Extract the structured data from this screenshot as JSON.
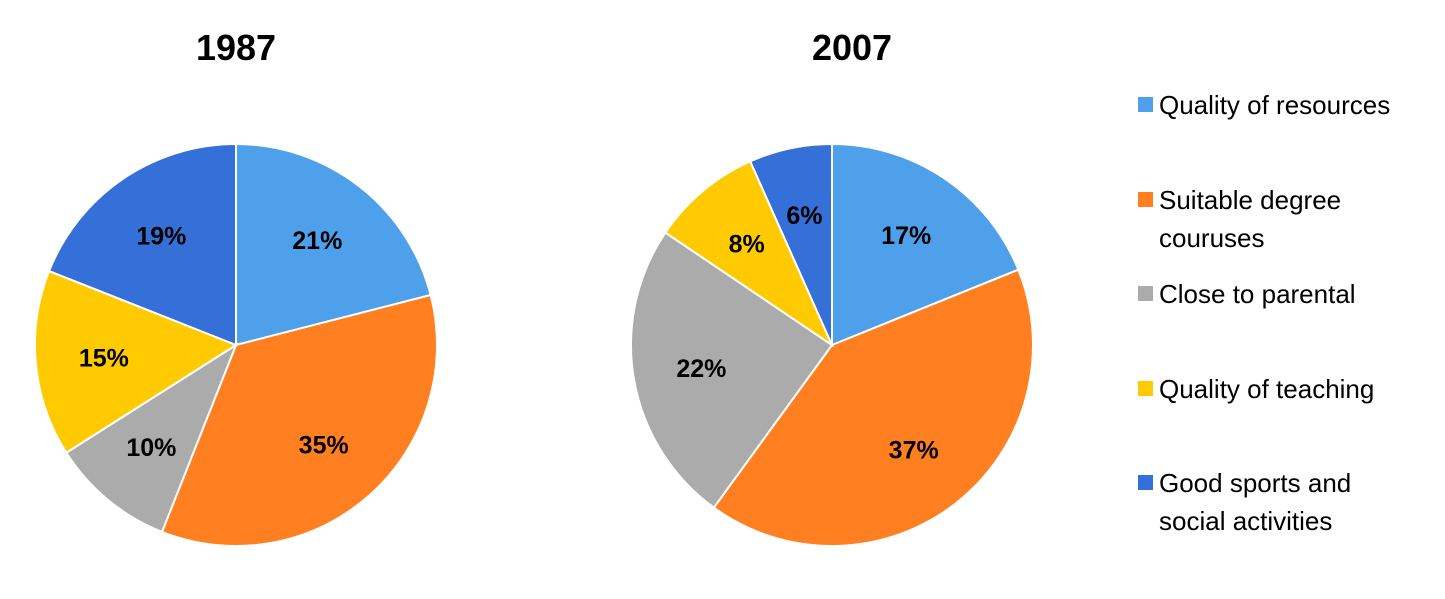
{
  "chart_data": [
    {
      "type": "pie",
      "title": "1987",
      "categories": [
        "Quality of resources",
        "Suitable degree couruses",
        "Close to parental",
        "Quality of teaching",
        "Good sports and social activities"
      ],
      "values": [
        21,
        35,
        10,
        15,
        19
      ],
      "labels": [
        "21%",
        "35%",
        "10%",
        "15%",
        "19%"
      ]
    },
    {
      "type": "pie",
      "title": "2007",
      "categories": [
        "Quality of resources",
        "Suitable degree couruses",
        "Close to parental",
        "Quality of teaching",
        "Good sports and social activities"
      ],
      "values": [
        17,
        37,
        22,
        8,
        6
      ],
      "labels": [
        "17%",
        "37%",
        "22%",
        "8%",
        "6%"
      ]
    }
  ],
  "legend": {
    "placement": "right",
    "items": [
      {
        "label": "Quality of resources",
        "color": "#4FA0EA"
      },
      {
        "label": "Suitable degree couruses",
        "color": "#FF7F21"
      },
      {
        "label": "Close to parental",
        "color": "#ABABAB"
      },
      {
        "label": "Quality of teaching",
        "color": "#FFCB00"
      },
      {
        "label": "Good sports and social activities",
        "color": "#3570D9"
      }
    ]
  }
}
